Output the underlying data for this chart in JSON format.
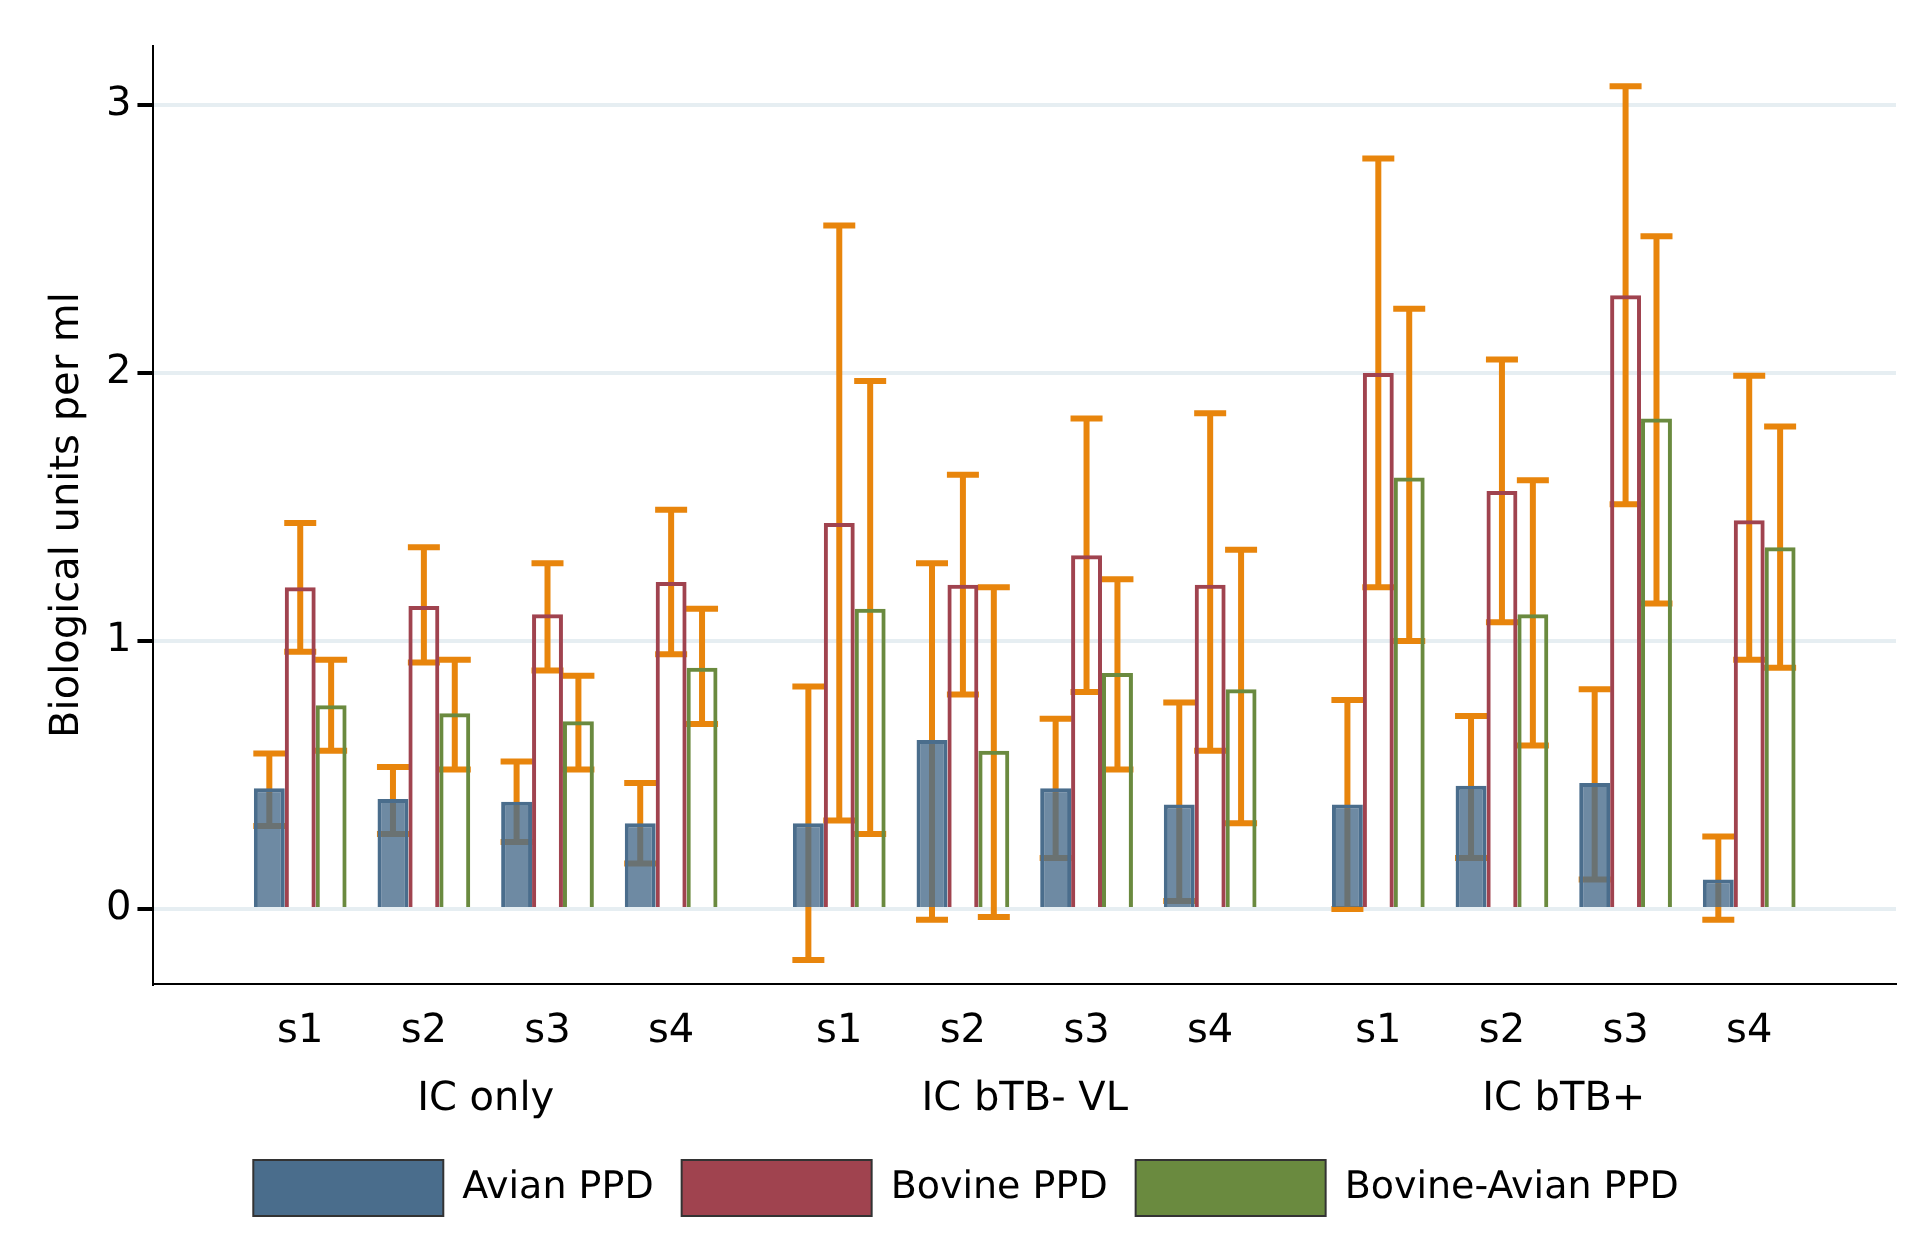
{
  "chart_data": {
    "type": "bar",
    "ylabel": "Biological units per ml",
    "categories": [
      "s1",
      "s2",
      "s3",
      "s4",
      "s1",
      "s2",
      "s3",
      "s4",
      "s1",
      "s2",
      "s3",
      "s4"
    ],
    "series": [
      {
        "name": "Avian PPD",
        "color": "#4a6d8c",
        "values": [
          0.45,
          0.41,
          0.4,
          0.32,
          0.32,
          0.63,
          0.45,
          0.39,
          0.39,
          0.46,
          0.47,
          0.11
        ],
        "errors": [
          [
            0.31,
            0.58
          ],
          [
            0.28,
            0.53
          ],
          [
            0.25,
            0.55
          ],
          [
            0.17,
            0.47
          ],
          [
            -0.19,
            0.83
          ],
          [
            -0.04,
            1.29
          ],
          [
            0.19,
            0.71
          ],
          [
            0.03,
            0.77
          ],
          [
            0,
            0.78
          ],
          [
            0.19,
            0.72
          ],
          [
            0.11,
            0.82
          ],
          [
            -0.04,
            0.27
          ]
        ]
      },
      {
        "name": "Bovine PPD",
        "color": "#a0434f",
        "values": [
          1.2,
          1.13,
          1.1,
          1.22,
          1.44,
          1.21,
          1.32,
          1.21,
          2.0,
          1.56,
          2.29,
          1.45
        ],
        "errors": [
          [
            0.96,
            1.44
          ],
          [
            0.92,
            1.35
          ],
          [
            0.89,
            1.29
          ],
          [
            0.95,
            1.49
          ],
          [
            0.33,
            2.55
          ],
          [
            0.8,
            1.62
          ],
          [
            0.81,
            1.83
          ],
          [
            0.59,
            1.85
          ],
          [
            1.2,
            2.8
          ],
          [
            1.07,
            2.05
          ],
          [
            1.51,
            3.07
          ],
          [
            0.93,
            1.99
          ]
        ]
      },
      {
        "name": "Bovine-Avian PPD",
        "color": "#6a8a3f",
        "values": [
          0.76,
          0.73,
          0.7,
          0.9,
          1.12,
          0.59,
          0.88,
          0.82,
          1.61,
          1.1,
          1.83,
          1.35
        ],
        "errors": [
          [
            0.59,
            0.93
          ],
          [
            0.52,
            0.93
          ],
          [
            0.52,
            0.87
          ],
          [
            0.69,
            1.12
          ],
          [
            0.28,
            1.97
          ],
          [
            -0.03,
            1.2
          ],
          [
            0.52,
            1.23
          ],
          [
            0.32,
            1.34
          ],
          [
            1.0,
            2.24
          ],
          [
            0.61,
            1.6
          ],
          [
            1.14,
            2.51
          ],
          [
            0.9,
            1.8
          ]
        ]
      }
    ],
    "annotations": [
      "IC only",
      "IC bTB- VL",
      "IC bTB+"
    ],
    "ylim": [
      -0.28,
      3.22
    ],
    "yticks": [
      0,
      1,
      2,
      3
    ],
    "grid": "y",
    "legend": "bottom"
  }
}
